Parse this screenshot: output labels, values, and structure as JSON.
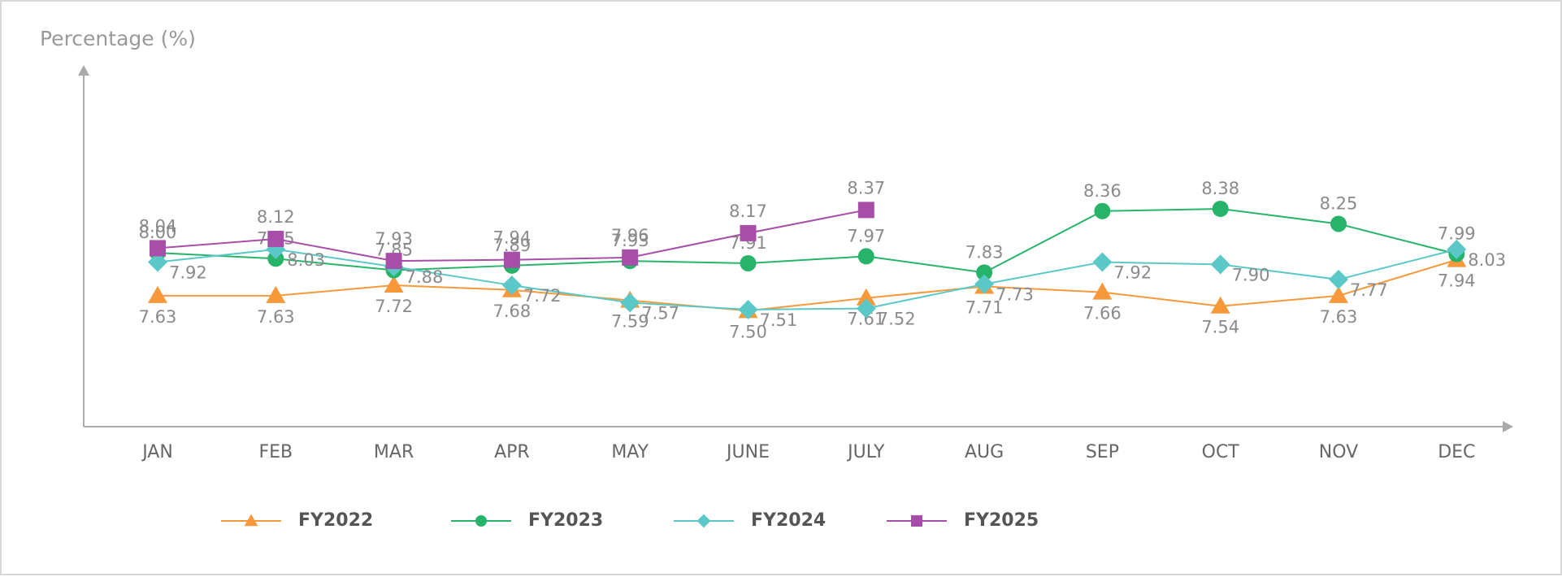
{
  "chart_data": {
    "type": "line",
    "y_label": "Percentage (%)",
    "categories": [
      "JAN",
      "FEB",
      "MAR",
      "APR",
      "MAY",
      "JUNE",
      "JULY",
      "AUG",
      "SEP",
      "OCT",
      "NOV",
      "DEC"
    ],
    "ylim": [
      6.5,
      9.6
    ],
    "legend": "bottom",
    "series": [
      {
        "name": "FY2022",
        "color": "#f7993a",
        "marker": "triangle",
        "values": [
          7.63,
          7.63,
          7.72,
          7.68,
          7.59,
          7.5,
          7.61,
          7.71,
          7.66,
          7.54,
          7.63,
          7.94
        ],
        "value_labels": [
          "7.63",
          "7.63",
          "7.72",
          "7.68",
          "7.59",
          "7.50",
          "7.61",
          "7.71",
          "7.66",
          "7.54",
          "7.63",
          "7.94"
        ]
      },
      {
        "name": "FY2023",
        "color": "#27b36a",
        "marker": "circle",
        "values": [
          8.0,
          7.95,
          7.85,
          7.89,
          7.93,
          7.91,
          7.97,
          7.83,
          8.36,
          8.38,
          8.25,
          7.99
        ],
        "value_labels": [
          "8.00",
          "7.95",
          "7.85",
          "7.89",
          "7.93",
          "7.91",
          "7.97",
          "7.83",
          "8.36",
          "8.38",
          "8.25",
          "7.99"
        ]
      },
      {
        "name": "FY2024",
        "color": "#5bc8c8",
        "marker": "diamond",
        "values": [
          7.92,
          8.03,
          7.88,
          7.72,
          7.57,
          7.51,
          7.52,
          7.73,
          7.92,
          7.9,
          7.77,
          8.03
        ],
        "value_labels": [
          "7.92",
          "8.03",
          "7.88",
          "7.72",
          "7.57",
          "7.51",
          "7.52",
          "7.73",
          "7.92",
          "7.90",
          "7.77",
          "8.03"
        ]
      },
      {
        "name": "FY2025",
        "color": "#a64ea8",
        "marker": "square",
        "values": [
          8.04,
          8.12,
          7.93,
          7.94,
          7.96,
          8.17,
          8.37,
          null,
          null,
          null,
          null,
          null
        ],
        "value_labels": [
          "8.04",
          "8.12",
          "7.93",
          "7.94",
          "7.96",
          "8.17",
          "8.37",
          null,
          null,
          null,
          null,
          null
        ]
      }
    ]
  }
}
